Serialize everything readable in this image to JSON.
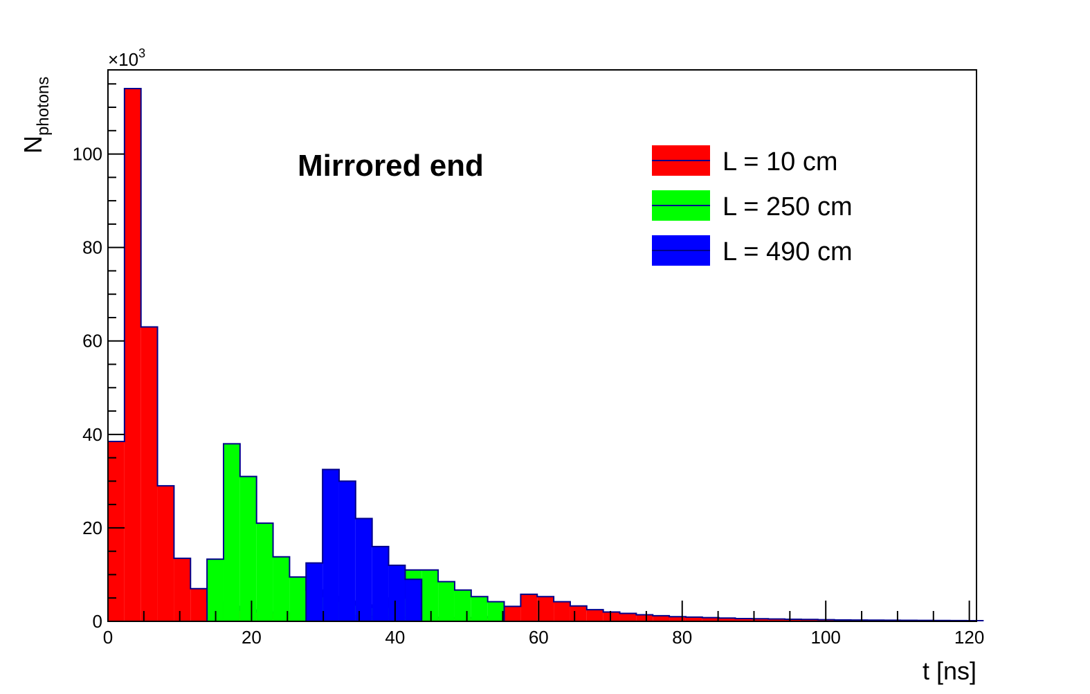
{
  "chart_data": {
    "type": "bar",
    "histogram": true,
    "title": "",
    "annotation": "Mirrored end",
    "xlabel": "t [ns]",
    "ylabel_main": "N",
    "ylabel_sub": "photons",
    "y_multiplier_prefix": "×10",
    "y_multiplier_exp": "3",
    "xlim": [
      0,
      121
    ],
    "ylim": [
      0,
      118
    ],
    "x_ticks": [
      0,
      20,
      40,
      60,
      80,
      100,
      120
    ],
    "y_ticks": [
      0,
      20,
      40,
      60,
      80,
      100
    ],
    "x_tick_labels": [
      "0",
      "20",
      "40",
      "60",
      "80",
      "100",
      "120"
    ],
    "y_tick_labels": [
      "0",
      "20",
      "40",
      "60",
      "80",
      "100"
    ],
    "bin_width": 2.3,
    "legend_position": "top-right",
    "outline_color": "#00008b",
    "series": [
      {
        "name": "L = 10 cm",
        "color": "#ff0000",
        "start": 0,
        "values": [
          38.5,
          114,
          63,
          29,
          13.5,
          7,
          4.2,
          3.2,
          2.4,
          2.0,
          1.8,
          1.6,
          1.4,
          1.3,
          1.2,
          1.1,
          1.0,
          0.95,
          0.9,
          0.85,
          0.8,
          0.78,
          0.8,
          1.0,
          3.2,
          5.8,
          5.3,
          4.2,
          3.3,
          2.5,
          2.0,
          1.7,
          1.4,
          1.2,
          1.0,
          0.9,
          0.8,
          0.7,
          0.6,
          0.55,
          0.5,
          0.45,
          0.4,
          0.35,
          0.3,
          0.28,
          0.26,
          0.24,
          0.22,
          0.2,
          0.18,
          0.16,
          0.14
        ]
      },
      {
        "name": "L = 250 cm",
        "color": "#00ff00",
        "start": 6,
        "values": [
          13.3,
          38,
          31,
          21,
          13.8,
          9.5,
          6.7,
          5.3,
          4.3,
          3.5,
          3.0,
          5.0,
          11,
          11,
          8.5,
          6.7,
          5.3,
          4.2
        ]
      },
      {
        "name": "L = 490 cm",
        "color": "#0000ff",
        "start": 12,
        "values": [
          12.5,
          32.5,
          30,
          22,
          16,
          12,
          9
        ]
      }
    ]
  }
}
